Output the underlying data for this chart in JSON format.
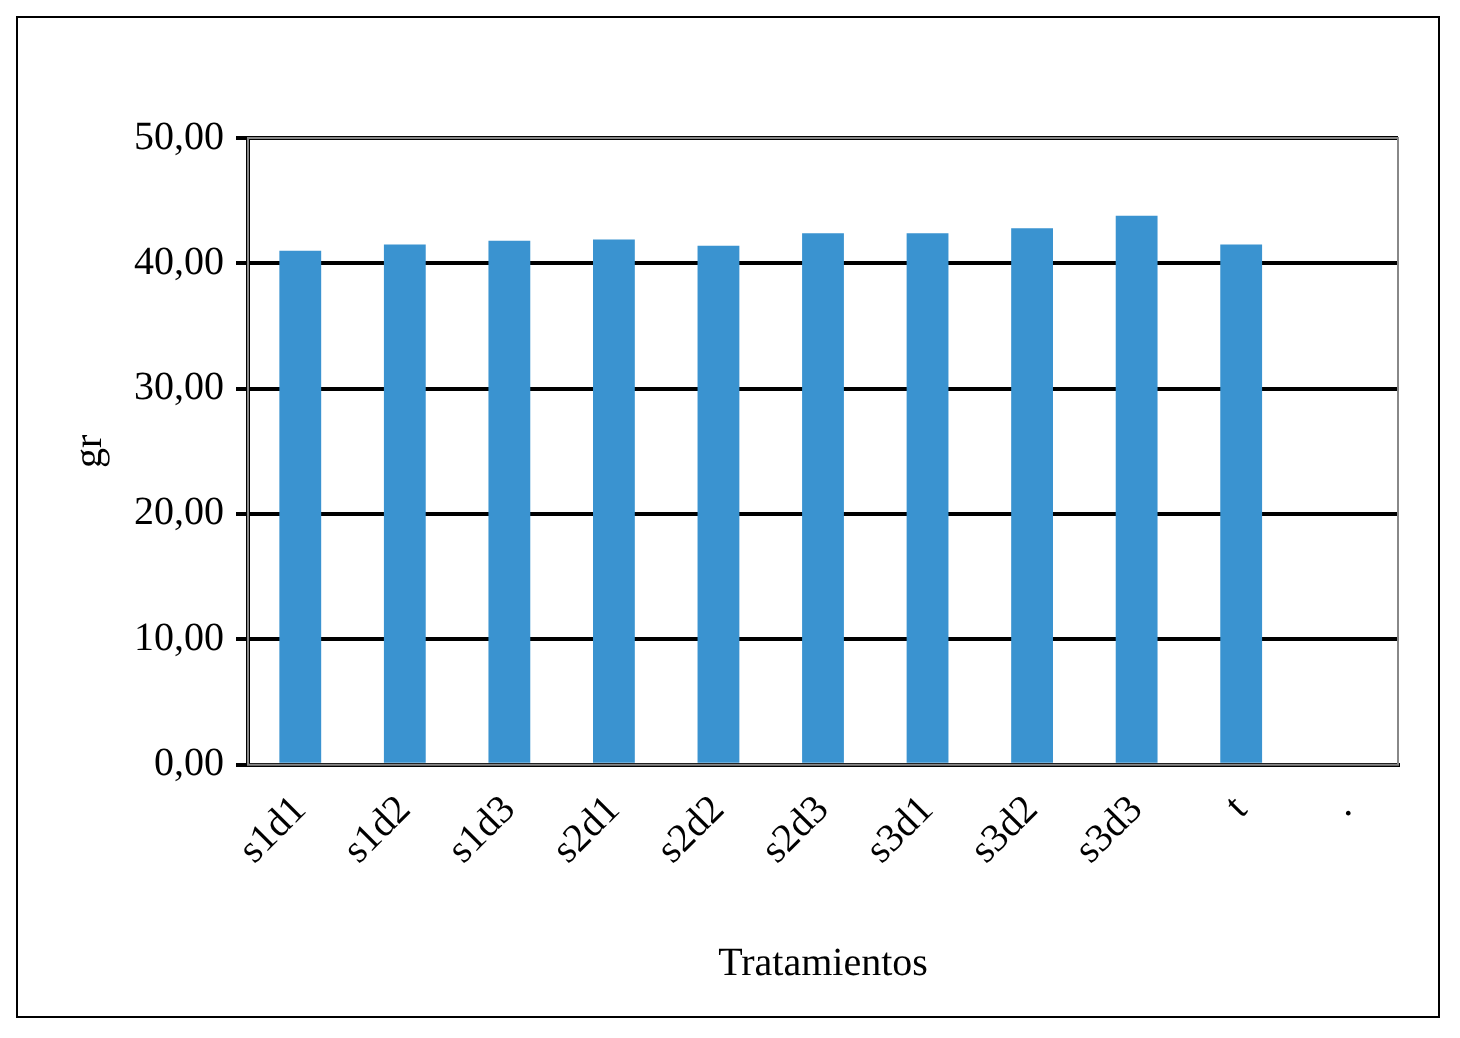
{
  "chart_data": {
    "type": "bar",
    "xlabel": "Tratamientos",
    "ylabel": "gr",
    "categories": [
      "s1d1",
      "s1d2",
      "s1d3",
      "s2d1",
      "s2d2",
      "s2d3",
      "s3d1",
      "s3d2",
      "s3d3",
      "t",
      "."
    ],
    "values": [
      41.0,
      41.5,
      41.8,
      41.9,
      41.4,
      42.4,
      42.4,
      42.8,
      43.8,
      41.5,
      null
    ],
    "color": "#3a93d0",
    "ylim": [
      0,
      50
    ],
    "yticks": [
      {
        "value": 0,
        "label": "0,00"
      },
      {
        "value": 10,
        "label": "10,00"
      },
      {
        "value": 20,
        "label": "20,00"
      },
      {
        "value": 30,
        "label": "30,00"
      },
      {
        "value": 40,
        "label": "40,00"
      },
      {
        "value": 50,
        "label": "50,00"
      }
    ],
    "grid": "y"
  }
}
